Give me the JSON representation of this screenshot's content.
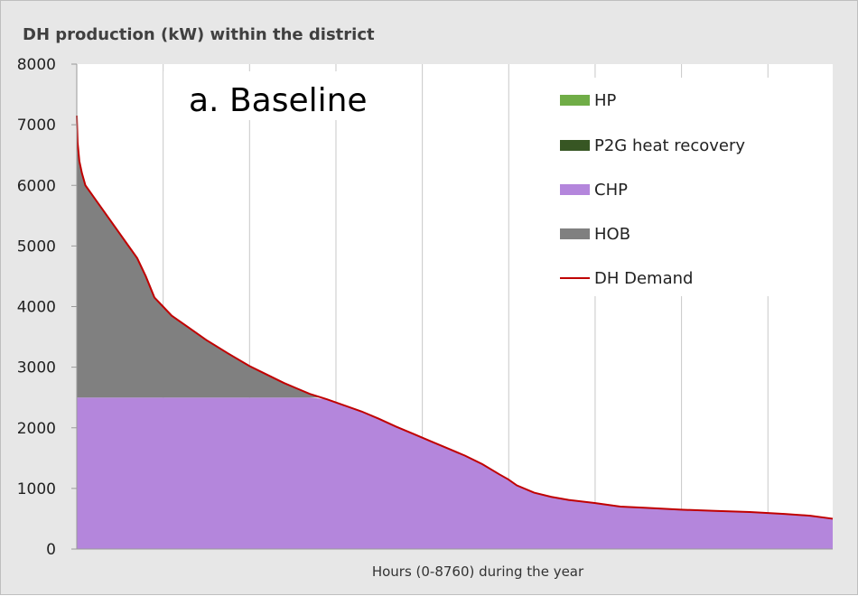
{
  "chart_data": {
    "type": "area",
    "title": "DH production (kW)  within the district",
    "annotation": "a.  Baseline",
    "xlabel": "Hours (0-8760) during the year",
    "ylabel": "",
    "xlim": [
      0,
      8760
    ],
    "ylim": [
      0,
      8000
    ],
    "yticks": [
      "0",
      "1000",
      "2000",
      "3000",
      "4000",
      "5000",
      "6000",
      "7000",
      "8000"
    ],
    "grid": "vertical",
    "legend_position": "right",
    "chp_capacity": 2500,
    "demand_curve": {
      "x": [
        0,
        10,
        30,
        60,
        100,
        200,
        300,
        450,
        600,
        700,
        800,
        900,
        1000,
        1100,
        1300,
        1500,
        1750,
        2000,
        2200,
        2400,
        2550,
        2700,
        2900,
        3100,
        3300,
        3500,
        3700,
        3900,
        4100,
        4300,
        4500,
        4700,
        4900,
        5000,
        5100,
        5300,
        5500,
        5700,
        6000,
        6300,
        6600,
        7000,
        7400,
        7800,
        8200,
        8500,
        8760
      ],
      "y": [
        7150,
        6700,
        6400,
        6200,
        6000,
        5800,
        5600,
        5300,
        5000,
        4800,
        4500,
        4150,
        4000,
        3850,
        3650,
        3450,
        3230,
        3020,
        2880,
        2740,
        2650,
        2560,
        2470,
        2370,
        2270,
        2150,
        2020,
        1900,
        1780,
        1660,
        1540,
        1400,
        1230,
        1150,
        1050,
        930,
        860,
        810,
        760,
        700,
        680,
        650,
        630,
        610,
        580,
        550,
        500
      ]
    },
    "series": [
      {
        "name": "HP",
        "color": "#70ad47",
        "values": "none"
      },
      {
        "name": "P2G heat recovery",
        "color": "#375623",
        "values": "none"
      },
      {
        "name": "CHP",
        "color": "#b486dc",
        "values": "min(DH Demand, 2500)"
      },
      {
        "name": "HOB",
        "color": "#808080",
        "values": "DH Demand minus CHP"
      },
      {
        "name": "DH Demand",
        "color": "#c00000",
        "values": "demand_curve"
      }
    ]
  },
  "legend": [
    {
      "label": "HP",
      "color": "#70ad47",
      "kind": "box"
    },
    {
      "label": "P2G heat recovery",
      "color": "#375623",
      "kind": "box"
    },
    {
      "label": "CHP",
      "color": "#b486dc",
      "kind": "box"
    },
    {
      "label": "HOB",
      "color": "#808080",
      "kind": "box"
    },
    {
      "label": "DH Demand",
      "color": "#c00000",
      "kind": "line"
    }
  ]
}
